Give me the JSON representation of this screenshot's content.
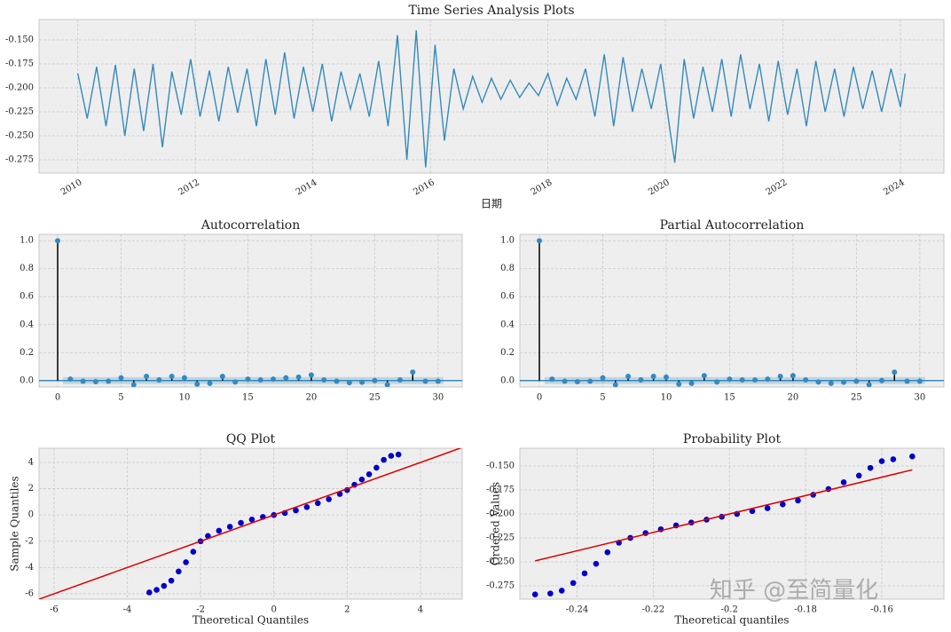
{
  "chart_data": [
    {
      "type": "line",
      "title": "Time Series Analysis Plots",
      "xlabel": "日期",
      "x": [
        2010.0,
        2010.16,
        2010.32,
        2010.48,
        2010.64,
        2010.8,
        2010.96,
        2011.12,
        2011.28,
        2011.44,
        2011.6,
        2011.76,
        2011.92,
        2012.08,
        2012.24,
        2012.4,
        2012.56,
        2012.72,
        2012.88,
        2013.04,
        2013.2,
        2013.36,
        2013.52,
        2013.68,
        2013.84,
        2014.0,
        2014.16,
        2014.32,
        2014.48,
        2014.64,
        2014.8,
        2014.96,
        2015.12,
        2015.28,
        2015.44,
        2015.6,
        2015.76,
        2015.92,
        2016.08,
        2016.24,
        2016.4,
        2016.56,
        2016.72,
        2016.88,
        2017.04,
        2017.2,
        2017.36,
        2017.52,
        2017.68,
        2017.84,
        2018.0,
        2018.16,
        2018.32,
        2018.48,
        2018.64,
        2018.8,
        2018.96,
        2019.12,
        2019.28,
        2019.44,
        2019.6,
        2019.76,
        2019.92,
        2020.08,
        2020.16,
        2020.32,
        2020.48,
        2020.64,
        2020.8,
        2020.96,
        2021.12,
        2021.28,
        2021.44,
        2021.6,
        2021.76,
        2021.92,
        2022.08,
        2022.24,
        2022.4,
        2022.56,
        2022.72,
        2022.88,
        2023.04,
        2023.2,
        2023.36,
        2023.52,
        2023.68,
        2023.84,
        2024.0,
        2024.08
      ],
      "series": [
        {
          "color": "#348abd",
          "values": [
            -0.185,
            -0.232,
            -0.178,
            -0.24,
            -0.176,
            -0.25,
            -0.18,
            -0.245,
            -0.175,
            -0.262,
            -0.183,
            -0.228,
            -0.17,
            -0.23,
            -0.182,
            -0.235,
            -0.178,
            -0.226,
            -0.18,
            -0.24,
            -0.17,
            -0.228,
            -0.163,
            -0.232,
            -0.178,
            -0.225,
            -0.175,
            -0.235,
            -0.183,
            -0.222,
            -0.185,
            -0.23,
            -0.172,
            -0.24,
            -0.145,
            -0.275,
            -0.14,
            -0.283,
            -0.155,
            -0.255,
            -0.18,
            -0.222,
            -0.188,
            -0.215,
            -0.19,
            -0.212,
            -0.192,
            -0.21,
            -0.195,
            -0.208,
            -0.185,
            -0.218,
            -0.19,
            -0.212,
            -0.18,
            -0.23,
            -0.165,
            -0.24,
            -0.168,
            -0.225,
            -0.18,
            -0.222,
            -0.175,
            -0.245,
            -0.278,
            -0.17,
            -0.232,
            -0.178,
            -0.225,
            -0.17,
            -0.23,
            -0.165,
            -0.222,
            -0.175,
            -0.235,
            -0.172,
            -0.228,
            -0.18,
            -0.24,
            -0.172,
            -0.225,
            -0.18,
            -0.23,
            -0.178,
            -0.222,
            -0.182,
            -0.225,
            -0.18,
            -0.22,
            -0.185
          ]
        }
      ],
      "xlim": [
        2009.34,
        2024.74
      ],
      "ylim": [
        -0.2889,
        -0.1287
      ],
      "xticks": [
        2010,
        2012,
        2014,
        2016,
        2018,
        2020,
        2022,
        2024
      ],
      "yticks": [
        {
          "value": -0.15,
          "label": "-0.150"
        },
        {
          "value": -0.175,
          "label": "-0.175"
        },
        {
          "value": -0.2,
          "label": "-0.200"
        },
        {
          "value": -0.225,
          "label": "-0.225"
        },
        {
          "value": -0.25,
          "label": "-0.250"
        },
        {
          "value": -0.275,
          "label": "-0.275"
        }
      ],
      "grid": true
    },
    {
      "type": "stem",
      "title": "Autocorrelation",
      "color": "#348abd",
      "stem_color": "#000000",
      "conf_band": 0.025,
      "x": [
        0,
        1,
        2,
        3,
        4,
        5,
        6,
        7,
        8,
        9,
        10,
        11,
        12,
        13,
        14,
        15,
        16,
        17,
        18,
        19,
        20,
        21,
        22,
        23,
        24,
        25,
        26,
        27,
        28,
        29,
        30
      ],
      "values": [
        1,
        0.01,
        -0.005,
        -0.008,
        -0.005,
        0.02,
        -0.03,
        0.03,
        0.005,
        0.03,
        0.02,
        -0.025,
        -0.02,
        0.03,
        -0.01,
        0.01,
        0.005,
        0.01,
        0.02,
        0.025,
        0.04,
        0.005,
        -0.005,
        -0.015,
        -0.012,
        0.0,
        -0.03,
        0.005,
        0.06,
        -0.005,
        -0.005
      ],
      "xlim": [
        -1.47,
        31.9
      ],
      "ylim": [
        -0.046,
        1.046
      ],
      "xticks": [
        0,
        5,
        10,
        15,
        20,
        25,
        30
      ],
      "yticks": [
        {
          "value": 0,
          "label": "0.0"
        },
        {
          "value": 0.2,
          "label": "0.2"
        },
        {
          "value": 0.4,
          "label": "0.4"
        },
        {
          "value": 0.6,
          "label": "0.6"
        },
        {
          "value": 0.8,
          "label": "0.8"
        },
        {
          "value": 1,
          "label": "1.0"
        }
      ],
      "grid": true
    },
    {
      "type": "stem",
      "title": "Partial Autocorrelation",
      "color": "#348abd",
      "stem_color": "#000000",
      "conf_band": 0.025,
      "x": [
        0,
        1,
        2,
        3,
        4,
        5,
        6,
        7,
        8,
        9,
        10,
        11,
        12,
        13,
        14,
        15,
        16,
        17,
        18,
        19,
        20,
        21,
        22,
        23,
        24,
        25,
        26,
        27,
        28,
        29,
        30
      ],
      "values": [
        1,
        0.01,
        -0.005,
        -0.008,
        -0.005,
        0.02,
        -0.03,
        0.03,
        0.005,
        0.03,
        0.025,
        -0.025,
        -0.02,
        0.035,
        -0.01,
        0.01,
        0.005,
        0.005,
        0.01,
        0.03,
        0.035,
        0.005,
        -0.01,
        -0.02,
        -0.012,
        -0.005,
        -0.03,
        0.0,
        0.06,
        -0.005,
        -0.005
      ],
      "xlim": [
        -1.54,
        31.9
      ],
      "ylim": [
        -0.046,
        1.046
      ],
      "xticks": [
        0,
        5,
        10,
        15,
        20,
        25,
        30
      ],
      "yticks": [
        {
          "value": 0,
          "label": "0.0"
        },
        {
          "value": 0.2,
          "label": "0.2"
        },
        {
          "value": 0.4,
          "label": "0.4"
        },
        {
          "value": 0.6,
          "label": "0.6"
        },
        {
          "value": 0.8,
          "label": "0.8"
        },
        {
          "value": 1,
          "label": "1.0"
        }
      ],
      "grid": true
    },
    {
      "type": "scatter",
      "title": "QQ Plot",
      "xlabel": "Theoretical Quantiles",
      "ylabel": "Sample Quantiles",
      "series": [
        {
          "color": "#0000cc",
          "style": "points",
          "x": [
            -3.4,
            -3.2,
            -3.0,
            -2.8,
            -2.6,
            -2.4,
            -2.2,
            -2.0,
            -1.8,
            -1.5,
            -1.2,
            -0.9,
            -0.6,
            -0.3,
            0,
            0.3,
            0.6,
            0.9,
            1.2,
            1.5,
            1.8,
            2.0,
            2.2,
            2.4,
            2.6,
            2.8,
            3.0,
            3.2,
            3.4
          ],
          "values": [
            -5.9,
            -5.7,
            -5.4,
            -5.0,
            -4.3,
            -3.6,
            -2.8,
            -2.0,
            -1.6,
            -1.2,
            -0.9,
            -0.6,
            -0.35,
            -0.15,
            0,
            0.15,
            0.35,
            0.6,
            0.9,
            1.2,
            1.6,
            1.9,
            2.3,
            2.7,
            3.1,
            3.6,
            4.2,
            4.5,
            4.6
          ]
        },
        {
          "color": "#dd0000",
          "style": "line",
          "x": [
            -6.41,
            5.14
          ],
          "values": [
            -6.41,
            5.14
          ]
        }
      ],
      "xlim": [
        -6.41,
        5.14
      ],
      "ylim": [
        -6.41,
        5.08
      ],
      "xticks": [
        -6,
        -4,
        -2,
        0,
        2,
        4
      ],
      "yticks": [
        -6,
        -4,
        -2,
        0,
        2,
        4
      ],
      "grid": true
    },
    {
      "type": "scatter",
      "title": "Probability Plot",
      "xlabel": "Theoretical quantiles",
      "ylabel": "Ordered Values",
      "series": [
        {
          "color": "#0000cc",
          "style": "points",
          "x": [
            -0.251,
            -0.247,
            -0.244,
            -0.241,
            -0.238,
            -0.235,
            -0.232,
            -0.229,
            -0.226,
            -0.222,
            -0.218,
            -0.214,
            -0.21,
            -0.206,
            -0.202,
            -0.198,
            -0.194,
            -0.19,
            -0.186,
            -0.182,
            -0.178,
            -0.174,
            -0.17,
            -0.166,
            -0.163,
            -0.16,
            -0.157,
            -0.152
          ],
          "values": [
            -0.284,
            -0.283,
            -0.28,
            -0.272,
            -0.262,
            -0.252,
            -0.24,
            -0.23,
            -0.225,
            -0.22,
            -0.216,
            -0.212,
            -0.209,
            -0.206,
            -0.203,
            -0.2,
            -0.197,
            -0.194,
            -0.19,
            -0.186,
            -0.18,
            -0.174,
            -0.167,
            -0.16,
            -0.152,
            -0.145,
            -0.143,
            -0.14
          ]
        },
        {
          "color": "#dd0000",
          "style": "line",
          "x": [
            -0.251,
            -0.152
          ],
          "values": [
            -0.249,
            -0.154
          ]
        }
      ],
      "xlim": [
        -0.255,
        -0.1437
      ],
      "ylim": [
        -0.2889,
        -0.1315
      ],
      "xticks": [
        -0.24,
        -0.22,
        -0.2,
        -0.18,
        -0.16
      ],
      "yticks": [
        {
          "value": -0.15,
          "label": "-0.150"
        },
        {
          "value": -0.175,
          "label": "-0.175"
        },
        {
          "value": -0.2,
          "label": "-0.200"
        },
        {
          "value": -0.225,
          "label": "-0.225"
        },
        {
          "value": -0.25,
          "label": "-0.250"
        },
        {
          "value": -0.275,
          "label": "-0.275"
        }
      ],
      "grid": true
    }
  ],
  "watermark": "知乎 @至简量化"
}
